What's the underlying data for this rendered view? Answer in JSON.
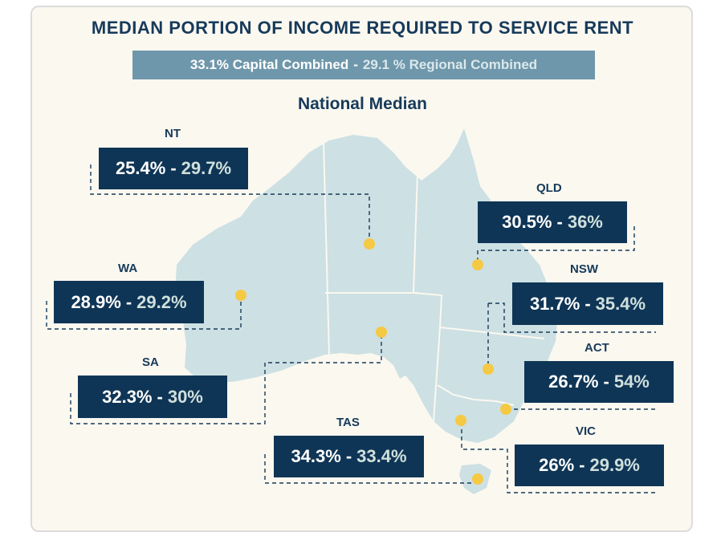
{
  "title": "MEDIAN PORTION OF INCOME REQUIRED TO SERVICE RENT",
  "banner": {
    "capital": "33.1% Capital Combined",
    "separator": "-",
    "regional": "29.1 % Regional Combined"
  },
  "subtitle": "National Median",
  "separator": "-",
  "states": {
    "nt": {
      "label": "NT",
      "capital": "25.4%",
      "regional": "29.7%"
    },
    "qld": {
      "label": "QLD",
      "capital": "30.5%",
      "regional": "36%"
    },
    "wa": {
      "label": "WA",
      "capital": "28.9%",
      "regional": "29.2%"
    },
    "nsw": {
      "label": "NSW",
      "capital": "31.7%",
      "regional": "35.4%"
    },
    "sa": {
      "label": "SA",
      "capital": "32.3%",
      "regional": "30%"
    },
    "act": {
      "label": "ACT",
      "capital": "26.7%",
      "regional": "54%"
    },
    "tas": {
      "label": "TAS",
      "capital": "34.3%",
      "regional": "33.4%"
    },
    "vic": {
      "label": "VIC",
      "capital": "26%",
      "regional": "29.9%"
    }
  },
  "colors": {
    "navy": "#0f3556",
    "land": "#cde0e3",
    "dot": "#f6c944",
    "banner": "#6f97ab"
  }
}
